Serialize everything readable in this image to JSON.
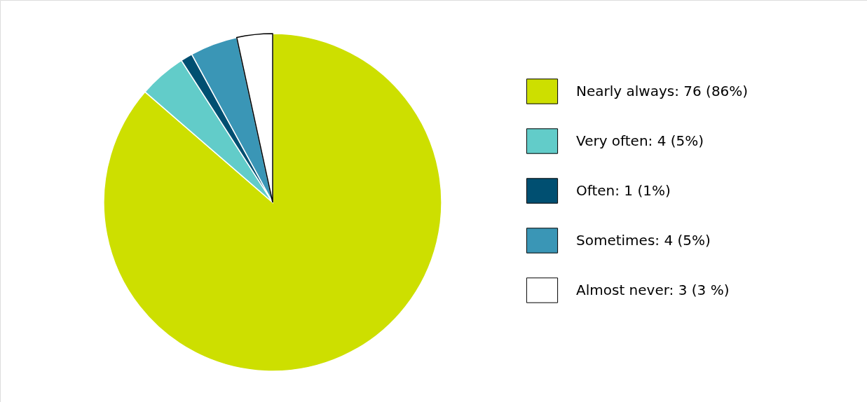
{
  "chart_data": {
    "type": "pie",
    "categories": [
      "Nearly always: 76 (86%)",
      "Very often: 4 (5%)",
      "Often: 1 (1%)",
      "Sometimes: 4 (5%)",
      "Almost never: 3 (3 %)"
    ],
    "values": [
      76,
      4,
      1,
      4,
      3
    ],
    "colors": [
      "#cddf00",
      "#62ccc9",
      "#004f71",
      "#3a96b6",
      "#ffffff"
    ],
    "legend": "right"
  }
}
